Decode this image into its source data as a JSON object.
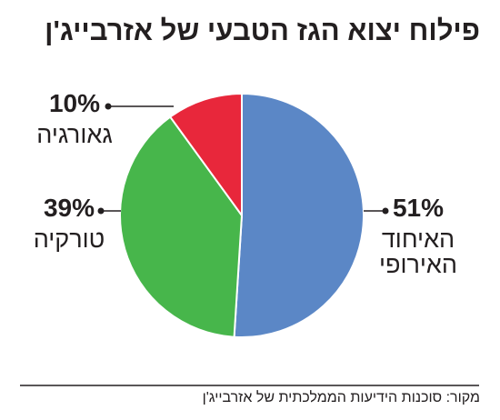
{
  "chart_data": {
    "type": "pie",
    "title": "פילוח יצוא הגז הטבעי של אזרבייג'ן",
    "source": "מקור: סוכנות הידיעות הממלכתית של אזרבייג'ן",
    "categories": [
      "האיחוד האירופי",
      "טורקיה",
      "גאורגיה"
    ],
    "values": [
      51,
      39,
      10
    ],
    "value_labels": [
      "51%",
      "39%",
      "10%"
    ],
    "colors": [
      "#5b87c6",
      "#47b64b",
      "#e8273b"
    ]
  }
}
